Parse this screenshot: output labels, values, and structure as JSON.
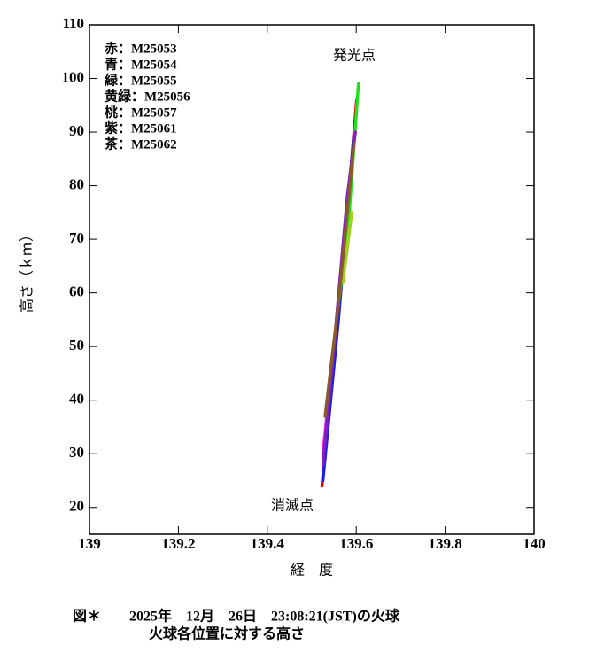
{
  "chart_data": {
    "type": "line",
    "x_label": "経　度",
    "y_label": "高さ（ｋｍ）",
    "caption": [
      "図＊　　2025年　12月　26日　23:08:21(JST)の火球",
      "火球各位置に対する高さ"
    ],
    "annotations": [
      "発光点",
      "消滅点"
    ],
    "xlim": [
      139,
      140
    ],
    "xticks": [
      139,
      139.2,
      139.4,
      139.6,
      139.8,
      140
    ],
    "ylim": [
      15,
      110
    ],
    "yticks": [
      20,
      30,
      40,
      50,
      60,
      70,
      80,
      90,
      100,
      110
    ],
    "series": [
      {
        "name": "赤：M25053",
        "color": "#e00000",
        "x": [
          139.523,
          139.545,
          139.565,
          139.585,
          139.601
        ],
        "values": [
          24,
          45,
          60,
          80,
          96
        ]
      },
      {
        "name": "青：M25054",
        "color": "#2020e0",
        "x": [
          139.525,
          139.56,
          139.59,
          139.598
        ],
        "values": [
          25,
          55,
          85,
          92
        ]
      },
      {
        "name": "緑：M25055",
        "color": "#20e020",
        "x": [
          139.555,
          139.58,
          139.605
        ],
        "values": [
          55,
          70,
          99
        ]
      },
      {
        "name": "黄緑：M25056",
        "color": "#a0d020",
        "x": [
          139.57,
          139.59
        ],
        "values": [
          62,
          75
        ]
      },
      {
        "name": "桃：M25057",
        "color": "#ff20ff",
        "x": [
          139.525,
          139.535,
          139.545
        ],
        "values": [
          30,
          38,
          47
        ]
      },
      {
        "name": "紫：M25061",
        "color": "#8020c0",
        "x": [
          139.525,
          139.55,
          139.58,
          139.598
        ],
        "values": [
          28,
          50,
          78,
          90
        ]
      },
      {
        "name": "茶：M25062",
        "color": "#8b5a2b",
        "x": [
          139.53,
          139.56,
          139.595
        ],
        "values": [
          37,
          58,
          88
        ]
      }
    ]
  }
}
